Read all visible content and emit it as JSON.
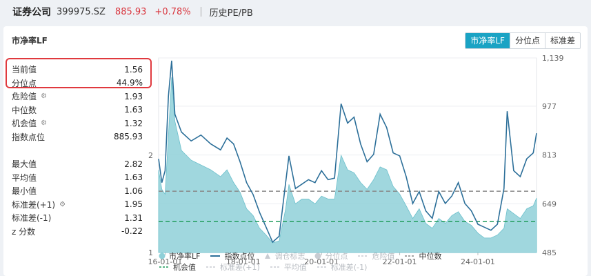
{
  "header": {
    "name": "证券公司",
    "code": "399975.SZ",
    "price": "885.93",
    "change": "+0.78%",
    "subtitle": "历史PE/PB"
  },
  "card": {
    "title": "市净率LF",
    "tabs": [
      {
        "label": "市净率LF",
        "active": true
      },
      {
        "label": "分位点",
        "active": false
      },
      {
        "label": "标准差",
        "active": false
      }
    ]
  },
  "stats": {
    "current": {
      "label": "当前值",
      "value": "1.56"
    },
    "percentile": {
      "label": "分位点",
      "value": "44.9%"
    },
    "danger": {
      "label": "危险值",
      "value": "1.93"
    },
    "median": {
      "label": "中位数",
      "value": "1.63"
    },
    "opportunity": {
      "label": "机会值",
      "value": "1.32"
    },
    "index_level": {
      "label": "指数点位",
      "value": "885.93"
    },
    "max": {
      "label": "最大值",
      "value": "2.82"
    },
    "avg": {
      "label": "平均值",
      "value": "1.63"
    },
    "min": {
      "label": "最小值",
      "value": "1.06"
    },
    "std_plus": {
      "label": "标准差(+1)",
      "value": "1.95"
    },
    "std_minus": {
      "label": "标准差(-1)",
      "value": "1.31"
    },
    "zscore": {
      "label": "z 分数",
      "value": "-0.22"
    }
  },
  "legend": {
    "pb": "市净率LF",
    "index": "指数点位",
    "adjust": "调仓标志",
    "pct": "分位点",
    "danger": "危险值",
    "median": "中位数",
    "opportunity": "机会值",
    "std_plus": "标准差(+1)",
    "avg": "平均值",
    "std_minus": "标准差(-1)"
  },
  "colors": {
    "area": "#8fd0d8",
    "index_line": "#2c6f99",
    "median_line": "#888888",
    "opportunity_line": "#1f9a5a",
    "accent": "#1aa3c4"
  },
  "chart_data": {
    "type": "area",
    "x_ticks": [
      "16-01-01",
      "18-01-01",
      "20-01-01",
      "22-01-01",
      "24-01-01"
    ],
    "left_axis_ticks": [
      "2",
      "1"
    ],
    "right_axis_ticks": [
      "1,139",
      "977",
      "813",
      "649",
      "485"
    ],
    "left_ylim": [
      1,
      3
    ],
    "right_ylim": [
      485,
      1139
    ],
    "median_level": 1.63,
    "opportunity_level": 1.32,
    "pb_series": [
      [
        "2015-11",
        1.85
      ],
      [
        "2015-12",
        1.65
      ],
      [
        "2016-01",
        1.6
      ],
      [
        "2016-02",
        2.2
      ],
      [
        "2016-03",
        2.8
      ],
      [
        "2016-04",
        2.35
      ],
      [
        "2016-06",
        2.05
      ],
      [
        "2016-09",
        1.95
      ],
      [
        "2016-12",
        1.9
      ],
      [
        "2017-03",
        1.85
      ],
      [
        "2017-06",
        1.78
      ],
      [
        "2017-08",
        1.85
      ],
      [
        "2017-10",
        1.72
      ],
      [
        "2017-12",
        1.62
      ],
      [
        "2018-02",
        1.45
      ],
      [
        "2018-04",
        1.38
      ],
      [
        "2018-06",
        1.25
      ],
      [
        "2018-08",
        1.18
      ],
      [
        "2018-10",
        1.1
      ],
      [
        "2018-12",
        1.12
      ],
      [
        "2019-02",
        1.45
      ],
      [
        "2019-03",
        1.7
      ],
      [
        "2019-05",
        1.5
      ],
      [
        "2019-07",
        1.55
      ],
      [
        "2019-09",
        1.55
      ],
      [
        "2019-11",
        1.5
      ],
      [
        "2020-01",
        1.58
      ],
      [
        "2020-03",
        1.55
      ],
      [
        "2020-05",
        1.55
      ],
      [
        "2020-07",
        2.0
      ],
      [
        "2020-09",
        1.85
      ],
      [
        "2020-11",
        1.82
      ],
      [
        "2021-01",
        1.72
      ],
      [
        "2021-03",
        1.65
      ],
      [
        "2021-05",
        1.75
      ],
      [
        "2021-07",
        1.88
      ],
      [
        "2021-09",
        1.85
      ],
      [
        "2021-11",
        1.68
      ],
      [
        "2022-01",
        1.6
      ],
      [
        "2022-03",
        1.48
      ],
      [
        "2022-05",
        1.35
      ],
      [
        "2022-07",
        1.45
      ],
      [
        "2022-09",
        1.3
      ],
      [
        "2022-11",
        1.25
      ],
      [
        "2023-01",
        1.35
      ],
      [
        "2023-03",
        1.3
      ],
      [
        "2023-05",
        1.38
      ],
      [
        "2023-07",
        1.42
      ],
      [
        "2023-09",
        1.32
      ],
      [
        "2023-11",
        1.28
      ],
      [
        "2024-01",
        1.2
      ],
      [
        "2024-03",
        1.15
      ],
      [
        "2024-05",
        1.15
      ],
      [
        "2024-07",
        1.18
      ],
      [
        "2024-09",
        1.25
      ],
      [
        "2024-10",
        1.45
      ],
      [
        "2024-12",
        1.4
      ],
      [
        "2025-02",
        1.35
      ],
      [
        "2025-04",
        1.45
      ],
      [
        "2025-06",
        1.48
      ],
      [
        "2025-07",
        1.56
      ]
    ],
    "index_series": [
      [
        "2015-11",
        800
      ],
      [
        "2015-12",
        720
      ],
      [
        "2016-01",
        760
      ],
      [
        "2016-02",
        1010
      ],
      [
        "2016-03",
        1130
      ],
      [
        "2016-04",
        950
      ],
      [
        "2016-06",
        890
      ],
      [
        "2016-09",
        860
      ],
      [
        "2016-12",
        880
      ],
      [
        "2017-03",
        850
      ],
      [
        "2017-06",
        830
      ],
      [
        "2017-08",
        870
      ],
      [
        "2017-10",
        850
      ],
      [
        "2017-12",
        790
      ],
      [
        "2018-02",
        720
      ],
      [
        "2018-04",
        680
      ],
      [
        "2018-06",
        620
      ],
      [
        "2018-08",
        570
      ],
      [
        "2018-10",
        520
      ],
      [
        "2018-12",
        540
      ],
      [
        "2019-02",
        720
      ],
      [
        "2019-03",
        810
      ],
      [
        "2019-05",
        700
      ],
      [
        "2019-07",
        715
      ],
      [
        "2019-09",
        730
      ],
      [
        "2019-11",
        720
      ],
      [
        "2020-01",
        760
      ],
      [
        "2020-03",
        730
      ],
      [
        "2020-05",
        735
      ],
      [
        "2020-07",
        985
      ],
      [
        "2020-09",
        920
      ],
      [
        "2020-11",
        940
      ],
      [
        "2021-01",
        850
      ],
      [
        "2021-03",
        790
      ],
      [
        "2021-05",
        815
      ],
      [
        "2021-07",
        950
      ],
      [
        "2021-09",
        905
      ],
      [
        "2021-11",
        820
      ],
      [
        "2022-01",
        810
      ],
      [
        "2022-03",
        740
      ],
      [
        "2022-05",
        650
      ],
      [
        "2022-07",
        690
      ],
      [
        "2022-09",
        625
      ],
      [
        "2022-11",
        600
      ],
      [
        "2023-01",
        690
      ],
      [
        "2023-03",
        650
      ],
      [
        "2023-05",
        675
      ],
      [
        "2023-07",
        720
      ],
      [
        "2023-09",
        650
      ],
      [
        "2023-11",
        625
      ],
      [
        "2024-01",
        580
      ],
      [
        "2024-03",
        570
      ],
      [
        "2024-05",
        560
      ],
      [
        "2024-07",
        580
      ],
      [
        "2024-09",
        700
      ],
      [
        "2024-10",
        960
      ],
      [
        "2024-12",
        760
      ],
      [
        "2025-02",
        740
      ],
      [
        "2025-04",
        800
      ],
      [
        "2025-06",
        820
      ],
      [
        "2025-07",
        886
      ]
    ]
  }
}
